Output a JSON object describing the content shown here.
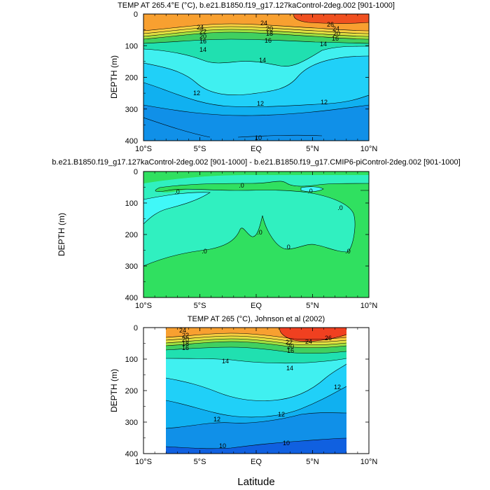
{
  "figure": {
    "xlabel_bottom": "Latitude"
  },
  "chart_data": [
    {
      "type": "heatmap",
      "title": "TEMP AT 265.4°E (°C), b.e21.B1850.f19_g17.127kaControl-2deg.002 [901-1000]",
      "ylabel": "DEPTH (m)",
      "xlabel": "",
      "x_ticks": [
        "10°S",
        "5°S",
        "EQ",
        "5°N",
        "10°N"
      ],
      "y_ticks": [
        "0",
        "100",
        "200",
        "300",
        "400"
      ],
      "xlim": [
        -10,
        10
      ],
      "ylim": [
        0,
        400
      ],
      "y_reversed": true,
      "contour_labels": [
        "26",
        "24",
        "22",
        "20",
        "18",
        "16",
        "14",
        "12",
        "10"
      ],
      "bands": [
        {
          "level": "26+",
          "color": "#f05020"
        },
        {
          "level": "24-26",
          "color": "#f8a030"
        },
        {
          "level": "22-24",
          "color": "#f8d040"
        },
        {
          "level": "20-22",
          "color": "#e0e040"
        },
        {
          "level": "18-20",
          "color": "#a0e040"
        },
        {
          "level": "16-18",
          "color": "#40d060"
        },
        {
          "level": "14-16",
          "color": "#20e0b0"
        },
        {
          "level": "13-14",
          "color": "#40f0f0"
        },
        {
          "level": "12-13",
          "color": "#20d0f8"
        },
        {
          "level": "11-12",
          "color": "#10b0f0"
        },
        {
          "level": "10-11",
          "color": "#1090e8"
        },
        {
          "level": "<10",
          "color": "#1060e0"
        }
      ]
    },
    {
      "type": "heatmap",
      "title": "b.e21.B1850.f19_g17.127kaControl-2deg.002 [901-1000] - b.e21.B1850.f19_g17.CMIP6-piControl-2deg.002 [901-1000]",
      "ylabel": "DEPTH (m)",
      "xlabel": "",
      "x_ticks": [
        "10°S",
        "5°S",
        "EQ",
        "5°N",
        "10°N"
      ],
      "y_ticks": [
        "0",
        "100",
        "200",
        "300",
        "400"
      ],
      "xlim": [
        -10,
        10
      ],
      "ylim": [
        0,
        400
      ],
      "y_reversed": true,
      "contour_labels": [
        ".0",
        ".0",
        ".0",
        ".0",
        ".0",
        ".0",
        ".0",
        ".0"
      ],
      "bands": [
        {
          "level": "positive",
          "color": "#30e060"
        },
        {
          "level": "near zero",
          "color": "#30f0c0"
        },
        {
          "level": "negative",
          "color": "#40f8f8"
        }
      ]
    },
    {
      "type": "heatmap",
      "title": "TEMP AT 265 (°C), Johnson et al (2002)",
      "ylabel": "DEPTH (m)",
      "xlabel": "Latitude",
      "x_ticks": [
        "10°S",
        "5°S",
        "EQ",
        "5°N",
        "10°N"
      ],
      "y_ticks": [
        "0",
        "100",
        "200",
        "300",
        "400"
      ],
      "xlim": [
        -10,
        10
      ],
      "ylim": [
        0,
        400
      ],
      "data_xlim": [
        -8,
        8
      ],
      "y_reversed": true,
      "contour_labels": [
        "26",
        "24",
        "22",
        "20",
        "18",
        "16",
        "14",
        "12",
        "10"
      ],
      "bands": [
        {
          "level": "26+",
          "color": "#f04020"
        },
        {
          "level": "24-26",
          "color": "#f8a030"
        },
        {
          "level": "22-24",
          "color": "#f8d040"
        },
        {
          "level": "20-22",
          "color": "#e0e040"
        },
        {
          "level": "18-20",
          "color": "#a0e040"
        },
        {
          "level": "16-18",
          "color": "#40d060"
        },
        {
          "level": "14-16",
          "color": "#20e0b0"
        },
        {
          "level": "13-14",
          "color": "#40f0f0"
        },
        {
          "level": "12-13",
          "color": "#20d0f8"
        },
        {
          "level": "11-12",
          "color": "#10b0f0"
        },
        {
          "level": "10-11",
          "color": "#1090e8"
        },
        {
          "level": "<10",
          "color": "#1060e0"
        }
      ]
    }
  ]
}
